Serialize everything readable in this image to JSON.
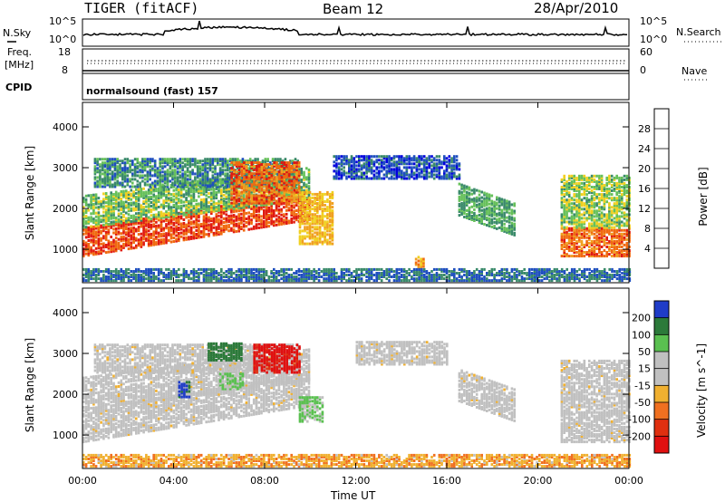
{
  "header": {
    "radar": "TIGER (fitACF)",
    "beam": "Beam 12",
    "date": "28/Apr/2010"
  },
  "strips": {
    "nsky_label": "N.Sky",
    "nsky_ticks": [
      "10^5",
      "10^0"
    ],
    "nsearch_label": "N.Search",
    "nsearch_ticks": [
      "10^5",
      "10^0"
    ],
    "freq_label_line1": "Freq.",
    "freq_label_line2": "[MHz]",
    "freq_ticks": [
      "18",
      "8"
    ],
    "nave_label": "Nave",
    "nave_ticks": [
      "60",
      "0"
    ],
    "cpid_label": "CPID",
    "cpid_value": "normalsound (fast) 157"
  },
  "colors": {
    "power": [
      "#0000dd",
      "#1f4fbf",
      "#3a8a6a",
      "#66c05a",
      "#f0d020",
      "#f0a020",
      "#f06a10",
      "#e01a10"
    ],
    "velocity": [
      "#1f3cc8",
      "#2c7a3a",
      "#5ac050",
      "#c0c0c0",
      "#c0c0c0",
      "#f0b030",
      "#f07020",
      "#e03010",
      "#e01010"
    ],
    "ground_scatter": "#c0c0c0"
  },
  "chart_data": [
    {
      "type": "heatmap",
      "title": "",
      "xlabel": "",
      "ylabel": "Slant Range [km]",
      "xlim": [
        "00:00",
        "24:00"
      ],
      "ylim": [
        180,
        4600
      ],
      "x_tick_labels": [
        "00:00",
        "04:00",
        "08:00",
        "12:00",
        "16:00",
        "20:00",
        "00:00"
      ],
      "y_tick_labels": [
        "1000",
        "2000",
        "3000",
        "4000"
      ],
      "colorbar_label": "Power [dB]",
      "colorbar_ticks": [
        "4",
        "8",
        "12",
        "16",
        "20",
        "24",
        "28"
      ],
      "colorbar_range": [
        0,
        32
      ],
      "regions": [
        {
          "t_start": 0.0,
          "t_end": 10.0,
          "range_low": 800,
          "range_high": 1500,
          "level": 28,
          "slope_km_per_h": 90
        },
        {
          "t_start": 0.0,
          "t_end": 10.0,
          "range_low": 1500,
          "range_high": 2300,
          "level": 14,
          "slope_km_per_h": 70
        },
        {
          "t_start": 0.5,
          "t_end": 9.5,
          "range_low": 2500,
          "range_high": 3200,
          "level": 10,
          "slope_km_per_h": 0
        },
        {
          "t_start": 6.5,
          "t_end": 9.5,
          "range_low": 2100,
          "range_high": 3100,
          "level": 26,
          "slope_km_per_h": 0
        },
        {
          "t_start": 9.5,
          "t_end": 11.0,
          "range_low": 1100,
          "range_high": 2400,
          "level": 20,
          "slope_km_per_h": 0
        },
        {
          "t_start": 11.0,
          "t_end": 16.5,
          "range_low": 2700,
          "range_high": 3250,
          "level": 6,
          "slope_km_per_h": 0
        },
        {
          "t_start": 16.5,
          "t_end": 19.0,
          "range_low": 1800,
          "range_high": 2600,
          "level": 12,
          "slope_km_per_h": -200
        },
        {
          "t_start": 14.6,
          "t_end": 15.0,
          "range_low": 500,
          "range_high": 800,
          "level": 22,
          "slope_km_per_h": 0
        },
        {
          "t_start": 21.0,
          "t_end": 24.0,
          "range_low": 800,
          "range_high": 1500,
          "level": 26,
          "slope_km_per_h": 0
        },
        {
          "t_start": 21.0,
          "t_end": 24.0,
          "range_low": 1500,
          "range_high": 2800,
          "level": 15,
          "slope_km_per_h": 0
        },
        {
          "t_start": 0.0,
          "t_end": 24.0,
          "range_low": 200,
          "range_high": 500,
          "level": 8,
          "slope_km_per_h": 0
        }
      ]
    },
    {
      "type": "heatmap",
      "title": "",
      "xlabel": "Time UT",
      "ylabel": "Slant Range [km]",
      "xlim": [
        "00:00",
        "24:00"
      ],
      "ylim": [
        180,
        4600
      ],
      "x_tick_labels": [
        "00:00",
        "04:00",
        "08:00",
        "12:00",
        "16:00",
        "20:00",
        "00:00"
      ],
      "y_tick_labels": [
        "1000",
        "2000",
        "3000",
        "4000"
      ],
      "colorbar_label": "Velocity [m s^-1]",
      "colorbar_ticks": [
        "200",
        "100",
        "50",
        "15",
        "-15",
        "-50",
        "-100",
        "-200"
      ],
      "colorbar_range": [
        -250,
        250
      ],
      "regions": [
        {
          "t_start": 0.0,
          "t_end": 10.0,
          "range_low": 800,
          "range_high": 1600,
          "level": 0,
          "slope_km_per_h": 90
        },
        {
          "t_start": 0.0,
          "t_end": 10.0,
          "range_low": 1600,
          "range_high": 2400,
          "level": 0,
          "slope_km_per_h": 70
        },
        {
          "t_start": 0.5,
          "t_end": 9.5,
          "range_low": 2500,
          "range_high": 3200,
          "level": 0,
          "slope_km_per_h": 0
        },
        {
          "t_start": 5.5,
          "t_end": 7.0,
          "range_low": 2800,
          "range_high": 3250,
          "level": 150,
          "slope_km_per_h": 0
        },
        {
          "t_start": 7.5,
          "t_end": 9.5,
          "range_low": 2500,
          "range_high": 3200,
          "level": -220,
          "slope_km_per_h": 0
        },
        {
          "t_start": 6.0,
          "t_end": 7.0,
          "range_low": 2100,
          "range_high": 2500,
          "level": 60,
          "slope_km_per_h": 0
        },
        {
          "t_start": 4.2,
          "t_end": 4.7,
          "range_low": 1900,
          "range_high": 2300,
          "level": 220,
          "slope_km_per_h": 0
        },
        {
          "t_start": 9.5,
          "t_end": 10.5,
          "range_low": 1300,
          "range_high": 1900,
          "level": 60,
          "slope_km_per_h": 0
        },
        {
          "t_start": 12.0,
          "t_end": 16.0,
          "range_low": 2700,
          "range_high": 3250,
          "level": 0,
          "slope_km_per_h": 0
        },
        {
          "t_start": 16.5,
          "t_end": 19.0,
          "range_low": 1800,
          "range_high": 2600,
          "level": 0,
          "slope_km_per_h": -200
        },
        {
          "t_start": 21.0,
          "t_end": 24.0,
          "range_low": 800,
          "range_high": 2800,
          "level": 0,
          "slope_km_per_h": 0
        },
        {
          "t_start": 0.0,
          "t_end": 24.0,
          "range_low": 200,
          "range_high": 500,
          "level": -40,
          "slope_km_per_h": 0
        }
      ]
    }
  ]
}
